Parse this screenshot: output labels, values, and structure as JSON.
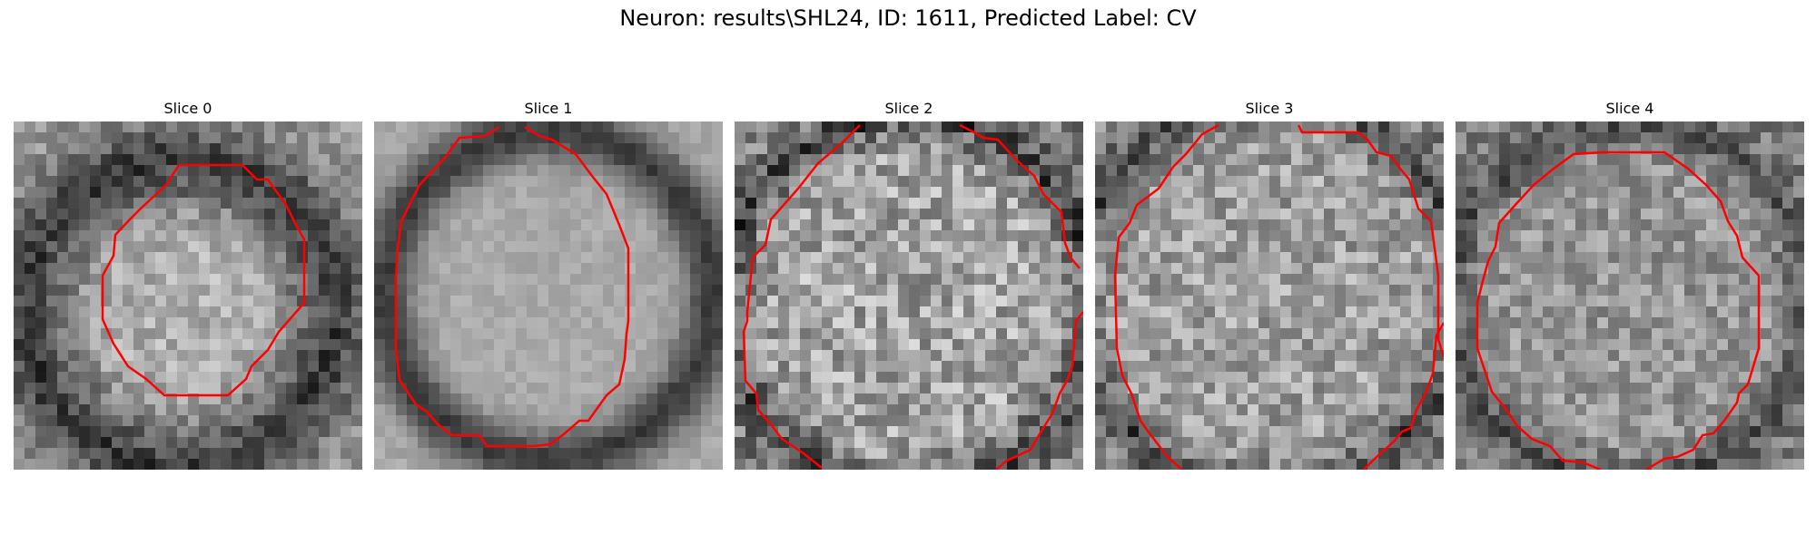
{
  "figure": {
    "title": "Neuron: results\\SHL24, ID: 1611, Predicted Label: CV"
  },
  "colors": {
    "contour": "#ff0000",
    "image_dark": "#111111",
    "image_light": "#f0f0f0"
  },
  "slices": [
    {
      "title": "Slice 0"
    },
    {
      "title": "Slice 1"
    },
    {
      "title": "Slice 2"
    },
    {
      "title": "Slice 3"
    },
    {
      "title": "Slice 4"
    }
  ]
}
